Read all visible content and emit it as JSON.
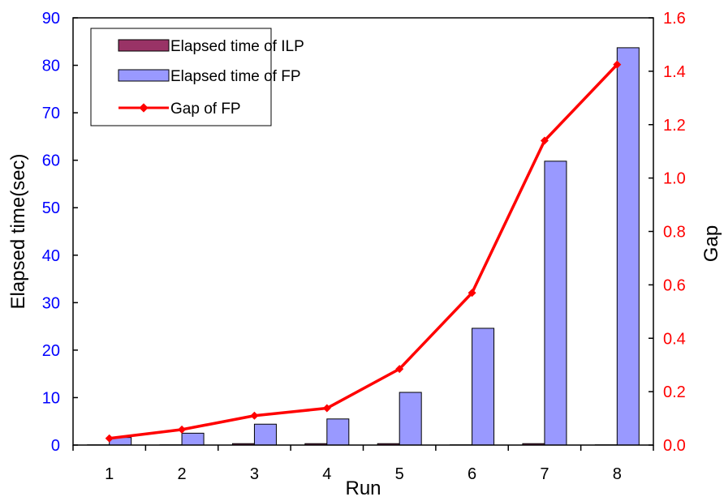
{
  "chart_data": {
    "type": "bar",
    "categories": [
      "1",
      "2",
      "3",
      "4",
      "5",
      "6",
      "7",
      "8"
    ],
    "series": [
      {
        "name": "Elapsed time of ILP",
        "kind": "bar",
        "axis": "left",
        "color": "#993366",
        "values": [
          0.05,
          0.05,
          0.3,
          0.3,
          0.3,
          0.05,
          0.3,
          0.05
        ]
      },
      {
        "name": "Elapsed time of FP",
        "kind": "bar",
        "axis": "left",
        "color": "#9999ff",
        "values": [
          1.6,
          2.5,
          4.4,
          5.5,
          11.1,
          24.6,
          59.8,
          83.7
        ]
      },
      {
        "name": "Gap of FP",
        "kind": "line",
        "axis": "right",
        "color": "#ff0000",
        "values": [
          0.025,
          0.058,
          0.11,
          0.138,
          0.285,
          0.57,
          1.14,
          1.425
        ]
      }
    ],
    "xlabel": "Run",
    "ylabel": "Elapsed time(sec)",
    "y2label": "Gap",
    "ylim": [
      0,
      90
    ],
    "y2lim": [
      0,
      1.6
    ],
    "yticks": [
      "0",
      "10",
      "20",
      "30",
      "40",
      "50",
      "60",
      "70",
      "80",
      "90"
    ],
    "y2ticks": [
      "0.0",
      "0.2",
      "0.4",
      "0.6",
      "0.8",
      "1.0",
      "1.2",
      "1.4",
      "1.6"
    ],
    "legend_position": "top-left",
    "left_axis_color": "#0000ff",
    "right_axis_color": "#ff0000",
    "grid": false
  }
}
